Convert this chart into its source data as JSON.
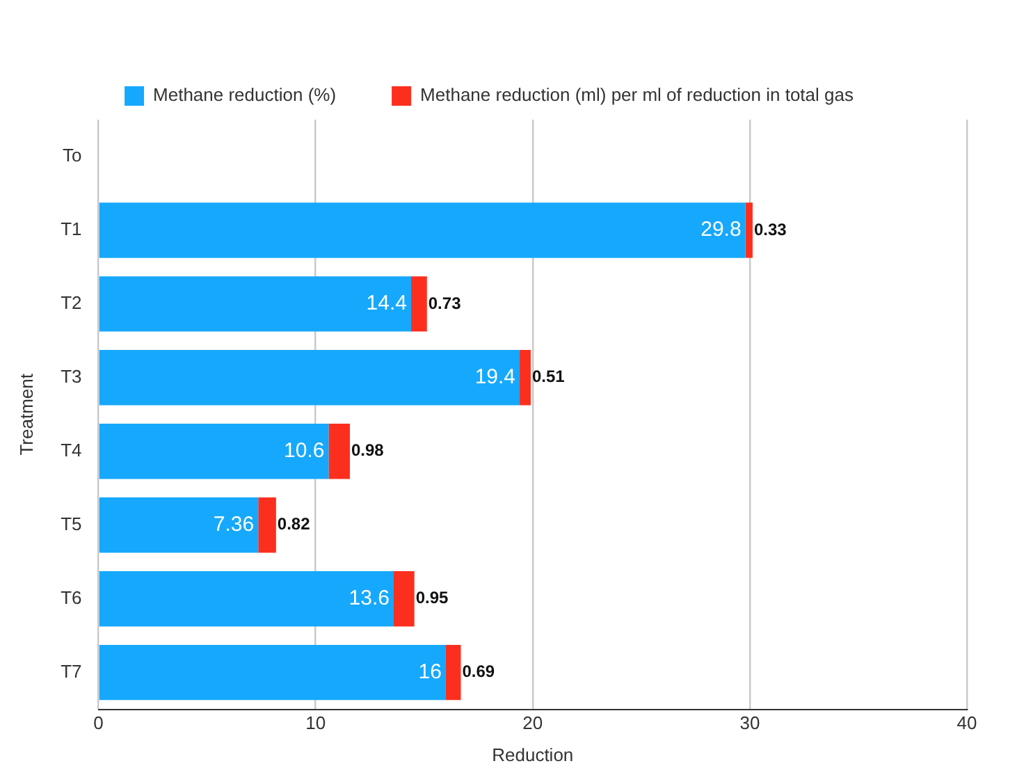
{
  "chart_data": {
    "type": "bar",
    "orientation": "horizontal",
    "stacked": true,
    "xlabel": "Reduction",
    "ylabel": "Treatment",
    "categories": [
      "To",
      "T1",
      "T2",
      "T3",
      "T4",
      "T5",
      "T6",
      "T7"
    ],
    "series": [
      {
        "name": "Methane reduction (%)",
        "color": "#16a8fc",
        "values": [
          null,
          29.8,
          14.4,
          19.4,
          10.6,
          7.36,
          13.6,
          16
        ]
      },
      {
        "name": "Methane reduction (ml) per ml of reduction in total gas",
        "color": "#fc2f1f",
        "values": [
          null,
          0.33,
          0.73,
          0.51,
          0.98,
          0.82,
          0.95,
          0.69
        ]
      }
    ],
    "xlim": [
      0,
      40
    ],
    "xticks": [
      0,
      10,
      20,
      30,
      40
    ],
    "grid": "x",
    "legend": "top",
    "data_labels": true
  }
}
